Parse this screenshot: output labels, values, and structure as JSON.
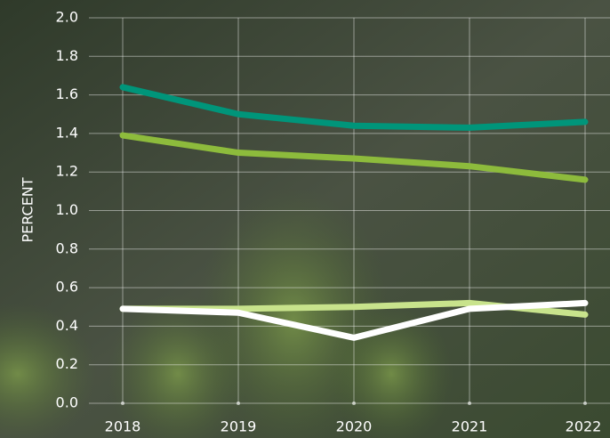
{
  "chart_data": {
    "type": "line",
    "y_label": "PERCENT",
    "categories": [
      "2018",
      "2019",
      "2020",
      "2021",
      "2022"
    ],
    "series": [
      {
        "color": "#00957a",
        "values": [
          1.64,
          1.5,
          1.44,
          1.43,
          1.46
        ]
      },
      {
        "color": "#8dbb3c",
        "values": [
          1.39,
          1.3,
          1.27,
          1.23,
          1.16
        ]
      },
      {
        "color": "#c8e38c",
        "values": [
          0.49,
          0.49,
          0.5,
          0.52,
          0.46
        ]
      },
      {
        "color": "#ffffff",
        "values": [
          0.49,
          0.47,
          0.34,
          0.49,
          0.52
        ]
      }
    ],
    "ylim": [
      0,
      2
    ],
    "yticks": [
      {
        "value": 0,
        "label": "0.0"
      },
      {
        "value": 0.2,
        "label": "0.2"
      },
      {
        "value": 0.4,
        "label": "0.4"
      },
      {
        "value": 0.6,
        "label": "0.6"
      },
      {
        "value": 0.8,
        "label": "0.8"
      },
      {
        "value": 1,
        "label": "1.0"
      },
      {
        "value": 1.2,
        "label": "1.2"
      },
      {
        "value": 1.4,
        "label": "1.4"
      },
      {
        "value": 1.6,
        "label": "1.6"
      },
      {
        "value": 1.8,
        "label": "1.8"
      },
      {
        "value": 2,
        "label": "2.0"
      }
    ],
    "grid": true
  }
}
